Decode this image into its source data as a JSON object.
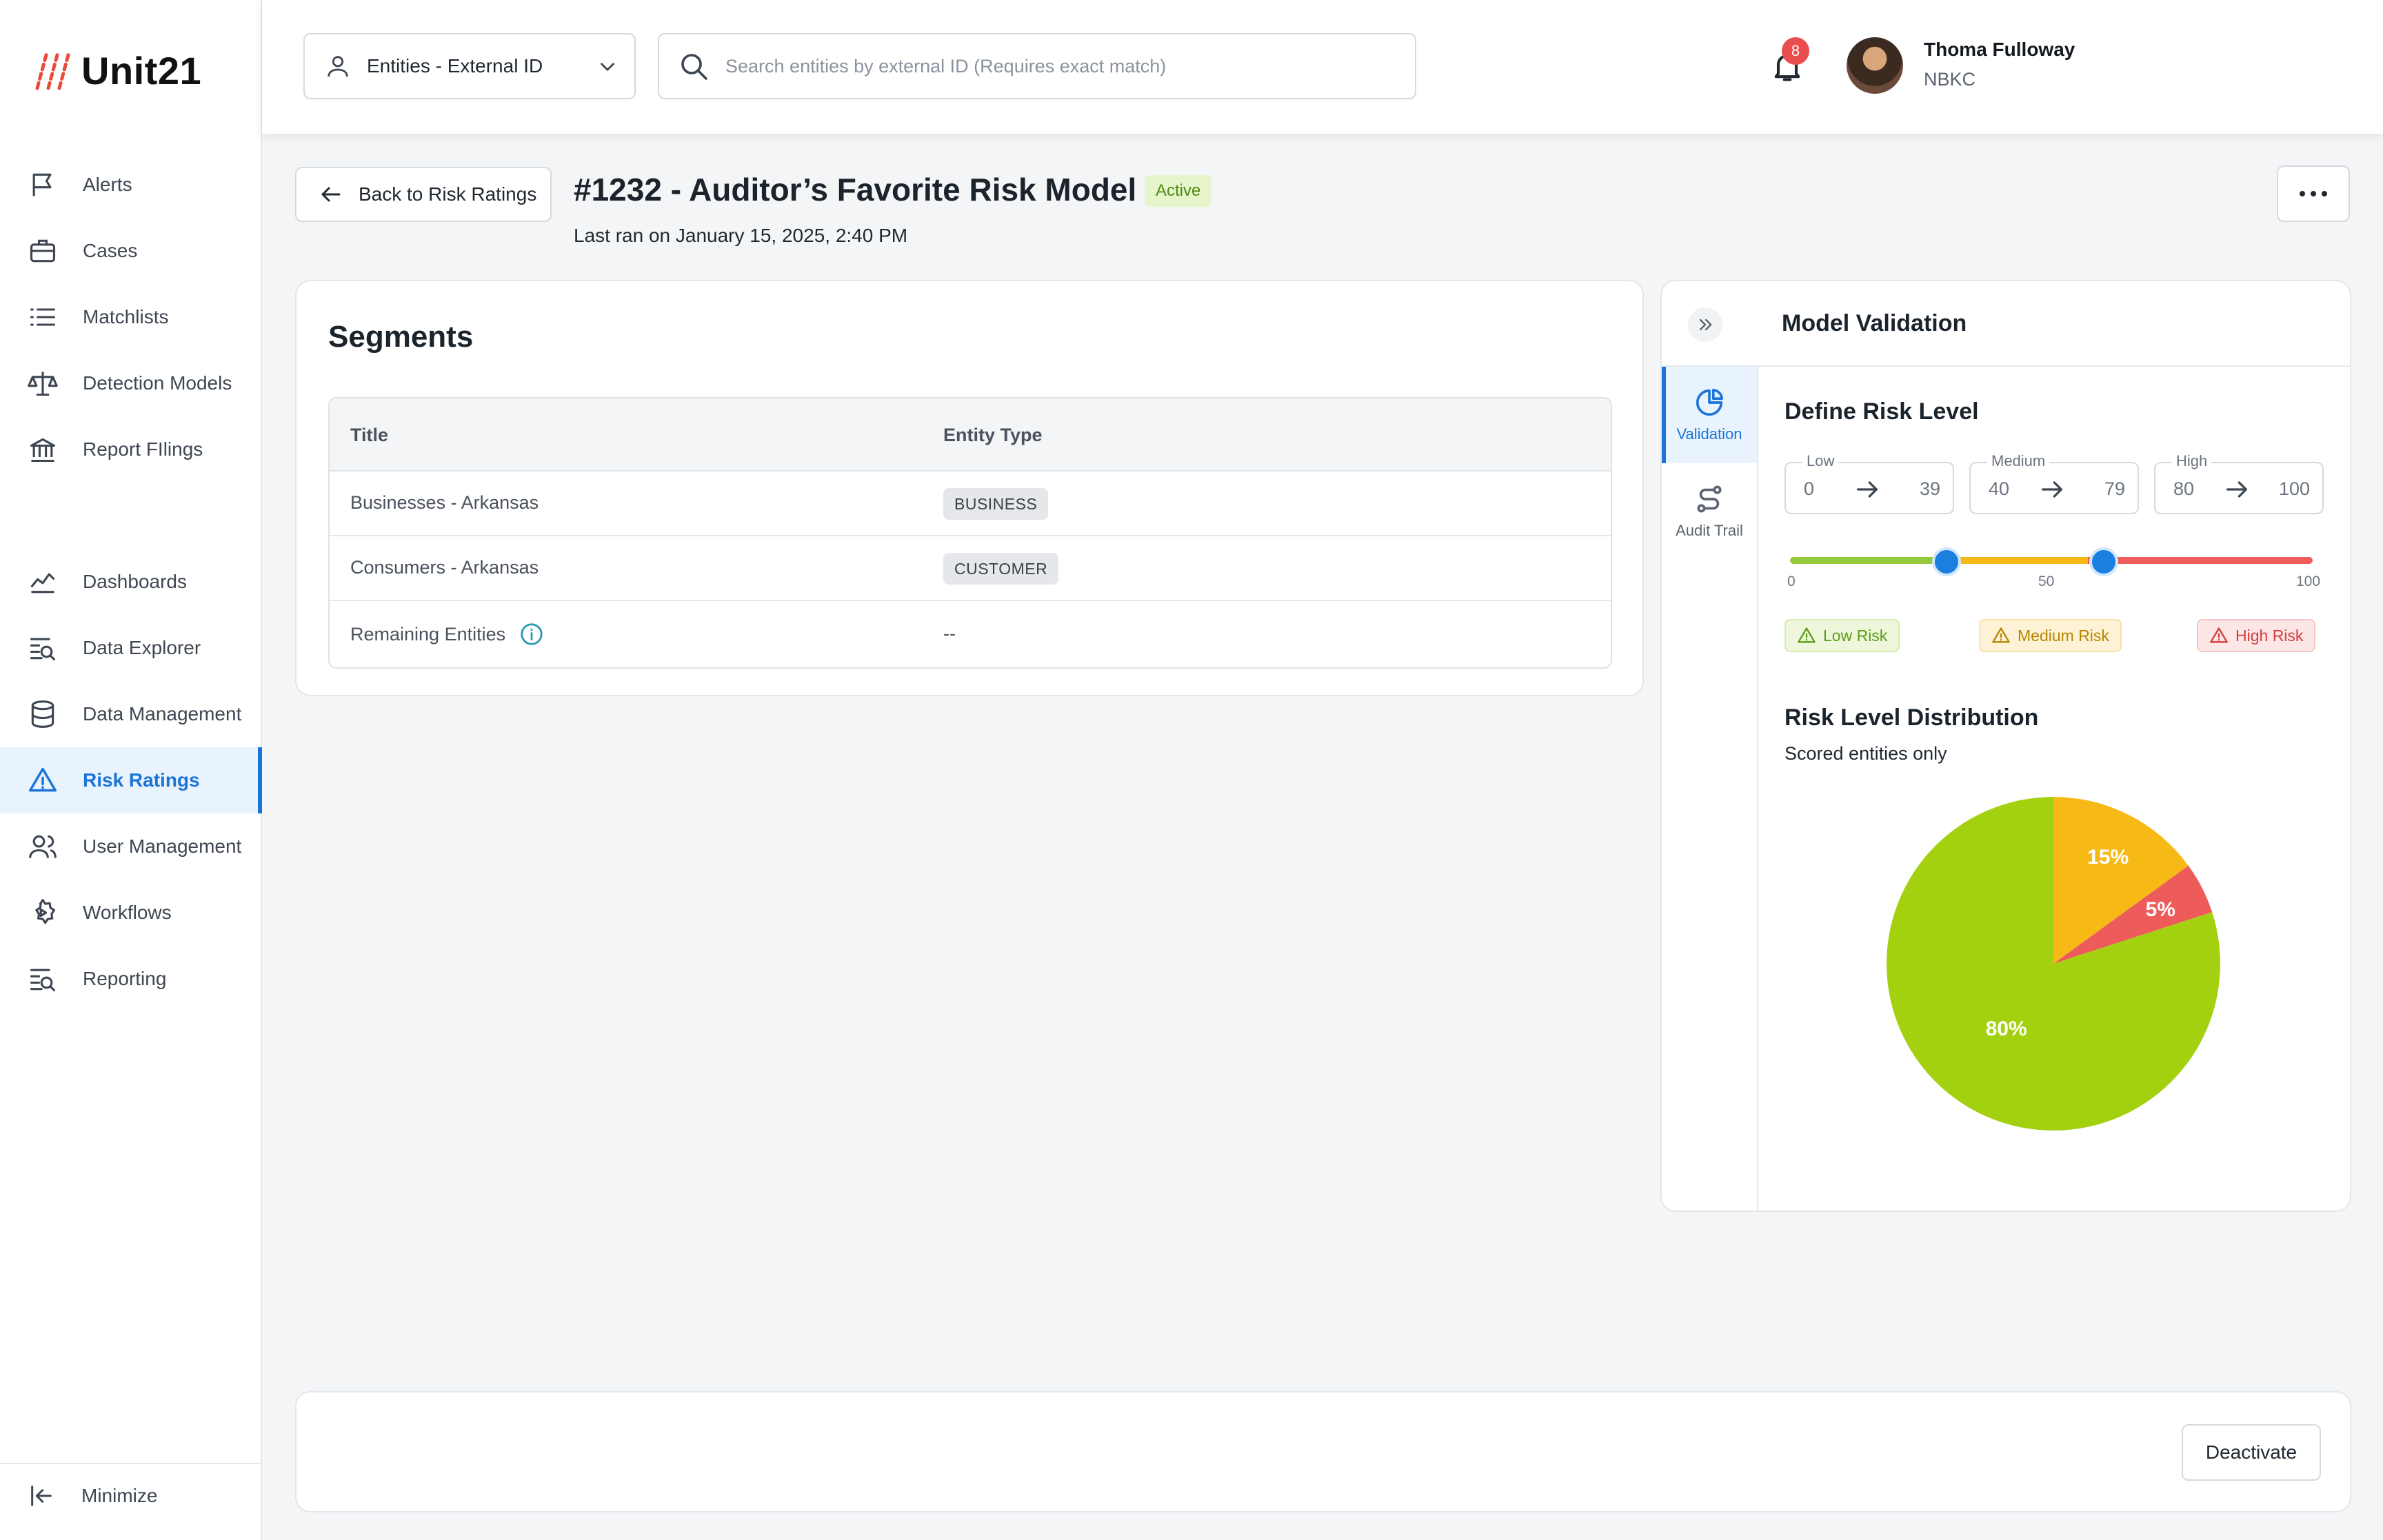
{
  "brand": {
    "name": "Unit21",
    "logo_color": "#e84b3c"
  },
  "sidebar": {
    "items": [
      {
        "label": "Alerts",
        "icon": "flag-icon"
      },
      {
        "label": "Cases",
        "icon": "briefcase-icon"
      },
      {
        "label": "Matchlists",
        "icon": "list-icon"
      },
      {
        "label": "Detection Models",
        "icon": "scale-icon"
      },
      {
        "label": "Report FIlings",
        "icon": "bank-icon"
      },
      {
        "label": "Dashboards",
        "icon": "chart-line-icon"
      },
      {
        "label": "Data Explorer",
        "icon": "search-list-icon"
      },
      {
        "label": "Data Management",
        "icon": "database-icon"
      },
      {
        "label": "Risk Ratings",
        "icon": "warning-icon",
        "active": true
      },
      {
        "label": "User Management",
        "icon": "users-icon"
      },
      {
        "label": "Workflows",
        "icon": "gear-play-icon"
      },
      {
        "label": "Reporting",
        "icon": "search-list-icon"
      }
    ],
    "minimize_label": "Minimize"
  },
  "topbar": {
    "entity_select": "Entities - External ID",
    "search_placeholder": "Search entities by external ID (Requires exact match)",
    "notification_count": "8",
    "user_name": "Thoma Fulloway",
    "user_org": "NBKC"
  },
  "header": {
    "back_label": "Back to Risk Ratings",
    "title": "#1232 - Auditor’s Favorite Risk Model",
    "status": "Active",
    "last_ran": "Last ran on January 15, 2025, 2:40 PM"
  },
  "segments": {
    "title": "Segments",
    "columns": [
      "Title",
      "Entity Type"
    ],
    "rows": [
      {
        "title": "Businesses - Arkansas",
        "type": "BUSINESS"
      },
      {
        "title": "Consumers - Arkansas",
        "type": "CUSTOMER"
      },
      {
        "title": "Remaining Entities",
        "type": "--"
      }
    ]
  },
  "validation": {
    "title": "Model Validation",
    "tabs": [
      "Validation",
      "Audit Trail"
    ],
    "define_title": "Define Risk Level",
    "ranges": [
      {
        "label": "Low",
        "from": "0",
        "to": "39"
      },
      {
        "label": "Medium",
        "from": "40",
        "to": "79"
      },
      {
        "label": "High",
        "from": "80",
        "to": "100"
      }
    ],
    "slider": {
      "min": "0",
      "mid": "50",
      "max": "100",
      "thumb_values": [
        30,
        60
      ]
    },
    "chips": [
      "Low Risk",
      "Medium Risk",
      "High Risk"
    ],
    "dist_title": "Risk Level Distribution",
    "dist_subtitle": "Scored entities only"
  },
  "chart_data": {
    "type": "pie",
    "title": "Risk Level Distribution",
    "subtitle": "Scored entities only",
    "slices": [
      {
        "label": "15%",
        "value": 15,
        "color": "#f7b916"
      },
      {
        "label": "5%",
        "value": 5,
        "color": "#ee5b5b"
      },
      {
        "label": "80%",
        "value": 80,
        "color": "#a3d10f"
      }
    ]
  },
  "footer": {
    "deactivate_label": "Deactivate"
  }
}
